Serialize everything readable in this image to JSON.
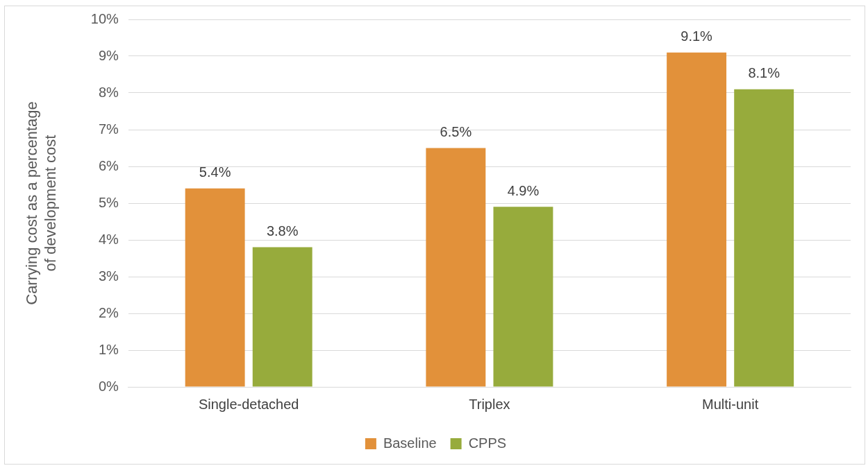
{
  "chart_data": {
    "type": "bar",
    "ylabel": "Carrying cost as a percentage of development cost",
    "categories": [
      "Single-detached",
      "Triplex",
      "Multi-unit"
    ],
    "series": [
      {
        "name": "Baseline",
        "color": "#e2913a",
        "values": [
          5.4,
          6.5,
          9.1
        ]
      },
      {
        "name": "CPPS",
        "color": "#97ab3c",
        "values": [
          3.8,
          4.9,
          8.1
        ]
      }
    ],
    "value_labels": [
      [
        "5.4%",
        "6.5%",
        "9.1%"
      ],
      [
        "3.8%",
        "4.9%",
        "8.1%"
      ]
    ],
    "ylim": [
      0,
      10
    ],
    "yticks": [
      {
        "value": 0,
        "label": "0%"
      },
      {
        "value": 1,
        "label": "1%"
      },
      {
        "value": 2,
        "label": "2%"
      },
      {
        "value": 3,
        "label": "3%"
      },
      {
        "value": 4,
        "label": "4%"
      },
      {
        "value": 5,
        "label": "5%"
      },
      {
        "value": 6,
        "label": "6%"
      },
      {
        "value": 7,
        "label": "7%"
      },
      {
        "value": 8,
        "label": "8%"
      },
      {
        "value": 9,
        "label": "9%"
      },
      {
        "value": 10,
        "label": "10%"
      }
    ],
    "grid": "y",
    "legend": "bottom"
  }
}
